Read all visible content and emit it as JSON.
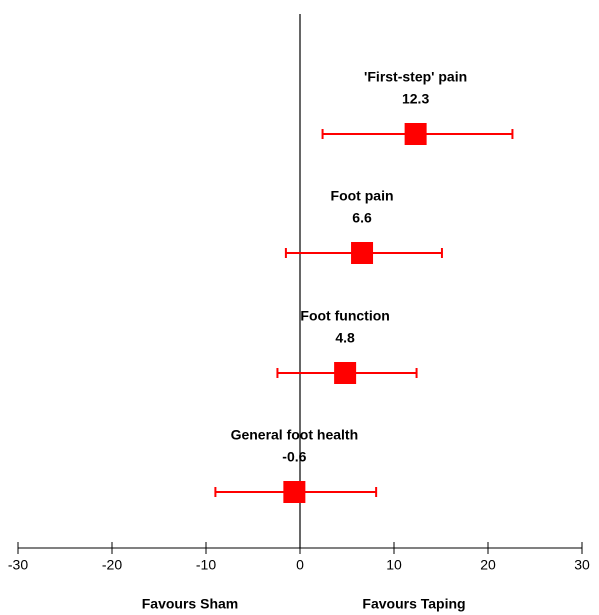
{
  "chart_data": {
    "type": "forest",
    "categories": [
      "'First-step' pain",
      "Foot pain",
      "Foot function",
      "General foot health"
    ],
    "values": [
      12.3,
      6.6,
      4.8,
      -0.6
    ],
    "ci_low": [
      2.4,
      -1.5,
      -2.4,
      -9.0
    ],
    "ci_high": [
      22.6,
      15.1,
      12.4,
      8.1
    ],
    "color": "#ff0000",
    "xlim": [
      -30,
      30
    ],
    "xticks": [
      -30,
      -20,
      -10,
      0,
      10,
      20,
      30
    ],
    "annotations": [
      "Favours Sham",
      "Favours Taping"
    ]
  }
}
